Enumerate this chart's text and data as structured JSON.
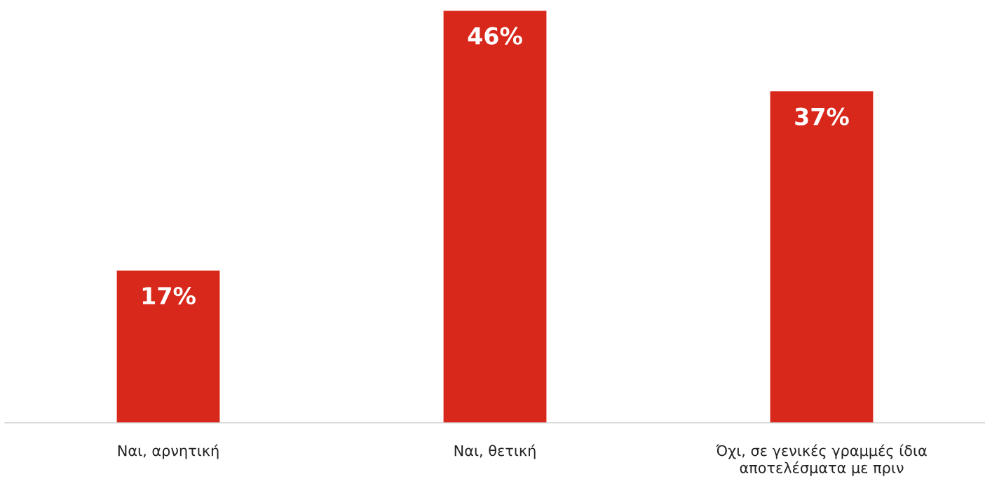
{
  "chart_data": {
    "type": "bar",
    "categories": [
      "Ναι, αρνητική",
      "Ναι, θετική",
      "Όχι, σε γενικές γραμμές ίδια\nαποτελέσματα με πριν"
    ],
    "values": [
      17,
      46,
      37
    ],
    "color": "#d8281c",
    "value_labels": [
      "17%",
      "46%",
      "37%"
    ],
    "grid": false,
    "legend": false
  }
}
